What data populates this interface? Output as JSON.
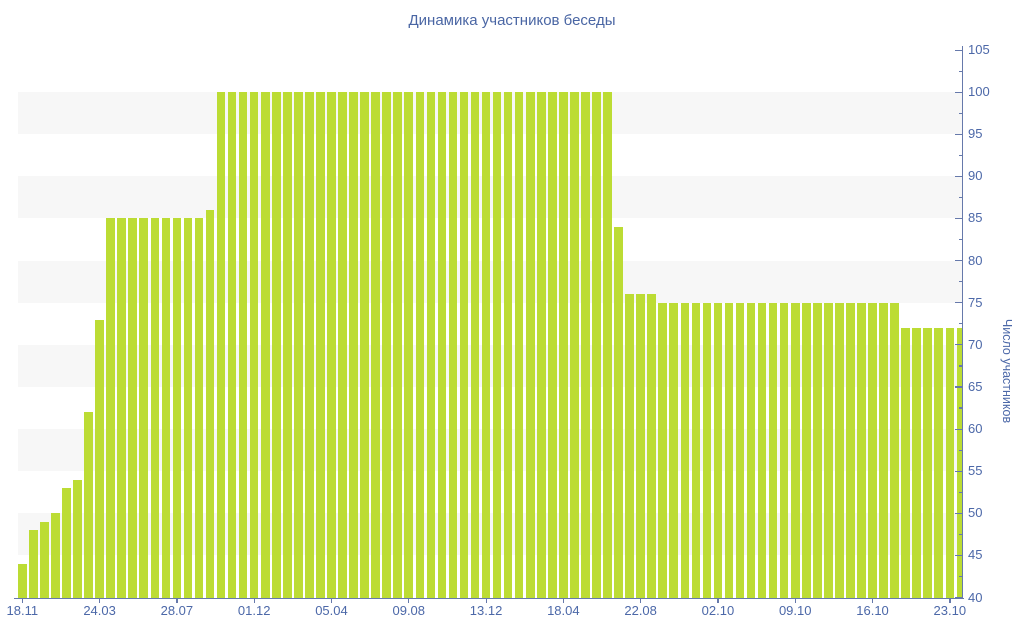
{
  "chart_data": {
    "type": "bar",
    "title": "Динамика участников беседы",
    "ylabel": "Число участников",
    "xlabel": "",
    "ylim": [
      40,
      105
    ],
    "y_major_step": 5,
    "y_minor_step": 2.5,
    "legend": "none",
    "grid": "horizontal-stripes",
    "stripe_bands": [
      [
        45,
        50
      ],
      [
        55,
        60
      ],
      [
        65,
        70
      ],
      [
        75,
        80
      ],
      [
        85,
        90
      ],
      [
        95,
        100
      ]
    ],
    "x_tick_labels": [
      "18.11",
      "24.03",
      "28.07",
      "01.12",
      "05.04",
      "09.08",
      "13.12",
      "18.04",
      "22.08",
      "02.10",
      "09.10",
      "16.10",
      "23.10"
    ],
    "x_tick_bar_indices": [
      0,
      7,
      14,
      21,
      28,
      35,
      42,
      49,
      56,
      63,
      70,
      77,
      84
    ],
    "values": [
      44,
      48,
      49,
      50,
      53,
      54,
      62,
      73,
      85,
      85,
      85,
      85,
      85,
      85,
      85,
      85,
      85,
      86,
      100,
      100,
      100,
      100,
      100,
      100,
      100,
      100,
      100,
      100,
      100,
      100,
      100,
      100,
      100,
      100,
      100,
      100,
      100,
      100,
      100,
      100,
      100,
      100,
      100,
      100,
      100,
      100,
      100,
      100,
      100,
      100,
      100,
      100,
      100,
      100,
      84,
      76,
      76,
      76,
      75,
      75,
      75,
      75,
      75,
      75,
      75,
      75,
      75,
      75,
      75,
      75,
      75,
      75,
      75,
      75,
      75,
      75,
      75,
      75,
      75,
      75,
      72,
      72,
      72,
      72,
      72,
      72
    ]
  },
  "colors": {
    "bar": "#bcdc34",
    "stripe": "#f7f7f7",
    "axis_line": "#6679ab",
    "label_text": "#4c68a8",
    "title_text": "#4a66a4",
    "background": "#ffffff"
  }
}
